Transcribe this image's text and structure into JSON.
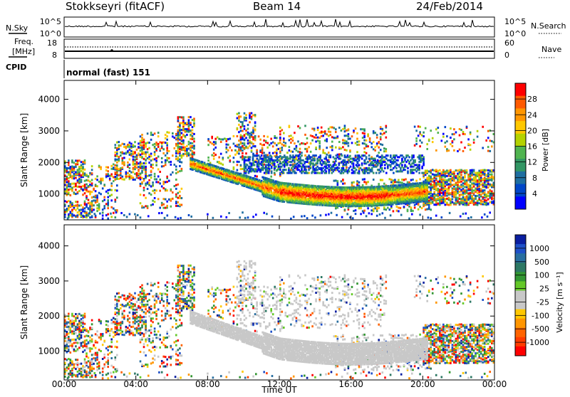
{
  "header": {
    "station": "Stokkseyri (fitACF)",
    "beam": "Beam 14",
    "date": "24/Feb/2014"
  },
  "noise_panel": {
    "left_label": "N.Sky",
    "right_label": "N.Search",
    "ticks_left": [
      "10^5",
      "10^0"
    ],
    "ticks_right": [
      "10^5",
      "10^0"
    ]
  },
  "freq_panel": {
    "left_label_1": "Freq.",
    "left_label_2": "[MHz]",
    "ticks_left": [
      "18",
      "8"
    ],
    "ticks_right": [
      "60",
      "0"
    ],
    "right_label": "Nave"
  },
  "cpid_panel": {
    "label": "CPID",
    "text": "normal (fast) 151"
  },
  "chart_data": [
    {
      "type": "heatmap",
      "name": "power",
      "ylabel": "Slant Range [km]",
      "yticks": [
        1000,
        2000,
        3000,
        4000
      ],
      "ylim": [
        180,
        4600
      ],
      "colorbar_label": "Power [dB]",
      "colorbar_ticks": [
        "28",
        "24",
        "20",
        "16",
        "12",
        "8",
        "4"
      ],
      "colorbar_colors": [
        "#ff0000",
        "#ff5a00",
        "#ff9600",
        "#ffc800",
        "#b4d200",
        "#50b450",
        "#329664",
        "#1e6ea0",
        "#0046c8",
        "#0000ff"
      ]
    },
    {
      "type": "heatmap",
      "name": "velocity",
      "ylabel": "Slant Range [km]",
      "yticks": [
        1000,
        2000,
        3000,
        4000
      ],
      "ylim": [
        180,
        4600
      ],
      "colorbar_label": "Velocity [m s⁻¹]",
      "colorbar_ticks": [
        "1000",
        "500",
        "100",
        "25",
        "-25",
        "-100",
        "-500",
        "-1000"
      ],
      "colorbar_colors": [
        "#0a1ea0",
        "#1e50c8",
        "#286ea0",
        "#2d7864",
        "#329632",
        "#64c828",
        "#c8c8c8",
        "#c8c8c8",
        "#ffc800",
        "#ff9600",
        "#ff6400",
        "#ff3c00",
        "#ff0000"
      ]
    }
  ],
  "x_axis": {
    "ticks": [
      "00:00",
      "04:00",
      "08:00",
      "12:00",
      "16:00",
      "20:00",
      "00:00"
    ],
    "label": "Time UT"
  }
}
